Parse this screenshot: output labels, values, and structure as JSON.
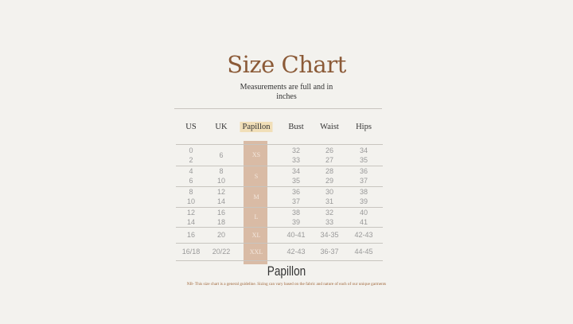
{
  "title": "Size Chart",
  "subtitle": "Measurements are full and in inches",
  "headers": [
    "US",
    "UK",
    "Papillon",
    "Bust",
    "Waist",
    "Hips"
  ],
  "rows": [
    {
      "us": "0\n2",
      "uk": "6",
      "size": "XS",
      "bust": "32\n33",
      "waist": "26\n27",
      "hips": "34\n35"
    },
    {
      "us": "4\n6",
      "uk": "8\n10",
      "size": "S",
      "bust": "34\n35",
      "waist": "28\n29",
      "hips": "36\n37"
    },
    {
      "us": "8\n10",
      "uk": "12\n14",
      "size": "M",
      "bust": "36\n37",
      "waist": "30\n31",
      "hips": "38\n39"
    },
    {
      "us": "12\n14",
      "uk": "16\n18",
      "size": "L",
      "bust": "38\n39",
      "waist": "32\n33",
      "hips": "40\n41"
    },
    {
      "us": "16",
      "uk": "20",
      "size": "XL",
      "bust": "40-41",
      "waist": "34-35",
      "hips": "42-43"
    },
    {
      "us": "16/18",
      "uk": "20/22",
      "size": "XXL",
      "bust": "42-43",
      "waist": "36-37",
      "hips": "44-45"
    }
  ],
  "brand": "Papillon",
  "note": "NB- This size chart is a general guideline. Sizing can vary based on the fabric and nature of each of our unique garments",
  "colors": {
    "title": "#8b5a37",
    "highlight": "#f1dfb8",
    "size_column": "#d9bba5",
    "background": "#f3f2ee"
  }
}
